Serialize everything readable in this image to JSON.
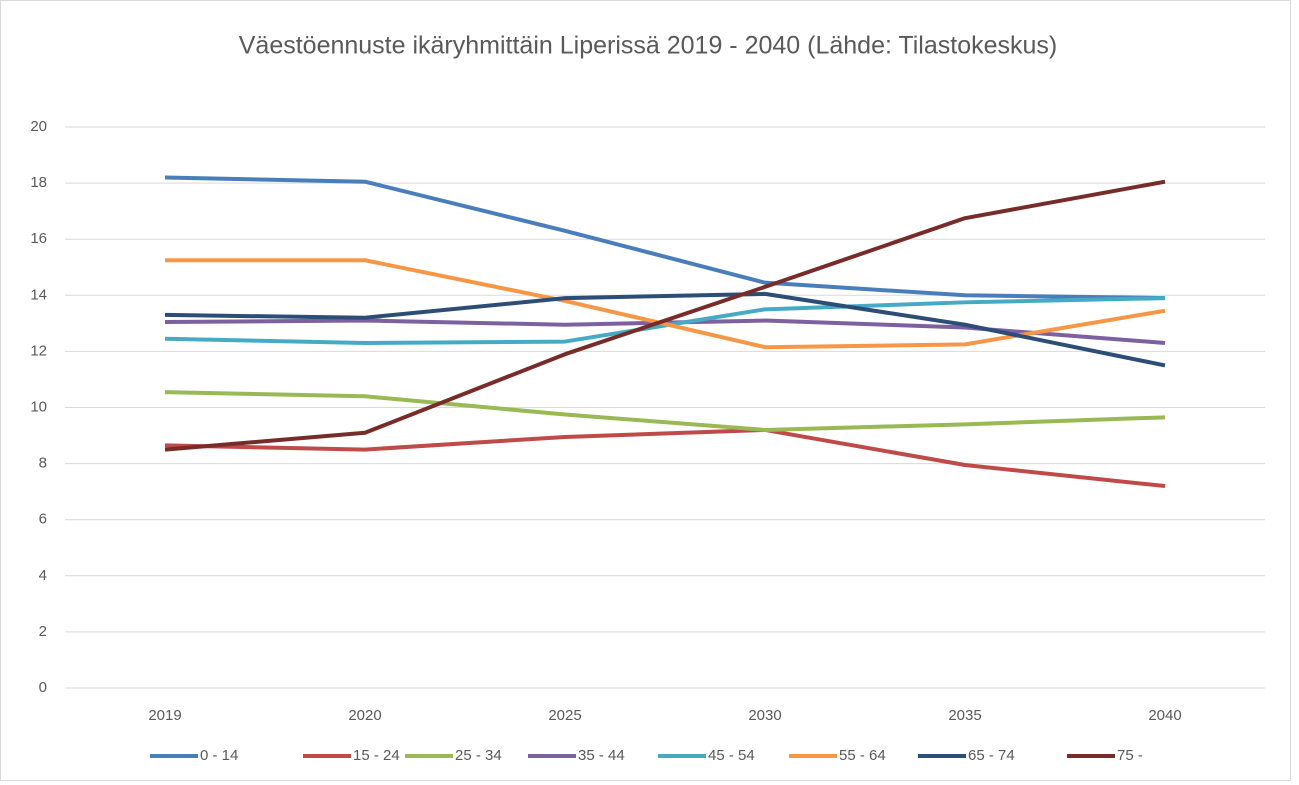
{
  "chart_data": {
    "type": "line",
    "title": "Väestöennuste ikäryhmittäin Liperissä 2019 - 2040 (Lähde: Tilastokeskus)",
    "categories": [
      "2019",
      "2020",
      "2025",
      "2030",
      "2035",
      "2040"
    ],
    "series": [
      {
        "name": "0 - 14",
        "color": "#4a7ebb",
        "values": [
          18.2,
          18.05,
          16.3,
          14.45,
          14.0,
          13.9
        ]
      },
      {
        "name": "15 - 24",
        "color": "#be4b48",
        "values": [
          8.65,
          8.5,
          8.95,
          9.2,
          7.95,
          7.2
        ]
      },
      {
        "name": "25 - 34",
        "color": "#98b954",
        "values": [
          10.55,
          10.4,
          9.75,
          9.2,
          9.4,
          9.65
        ]
      },
      {
        "name": "35 - 44",
        "color": "#7d60a0",
        "values": [
          13.05,
          13.1,
          12.95,
          13.1,
          12.85,
          12.3
        ]
      },
      {
        "name": "45 - 54",
        "color": "#46aac5",
        "values": [
          12.45,
          12.3,
          12.35,
          13.5,
          13.75,
          13.9
        ]
      },
      {
        "name": "55 - 64",
        "color": "#f79646",
        "values": [
          15.25,
          15.25,
          13.8,
          12.15,
          12.25,
          13.45
        ]
      },
      {
        "name": "65 - 74",
        "color": "#2c4d75",
        "values": [
          13.3,
          13.2,
          13.9,
          14.05,
          12.95,
          11.5
        ]
      },
      {
        "name": "75 -",
        "color": "#772c2a",
        "values": [
          8.5,
          9.1,
          11.9,
          14.3,
          16.75,
          18.05
        ]
      }
    ],
    "ylim": [
      0,
      20
    ],
    "yticks": [
      0,
      2,
      4,
      6,
      8,
      10,
      12,
      14,
      16,
      18,
      20
    ],
    "grid": true,
    "legend": "bottom"
  }
}
